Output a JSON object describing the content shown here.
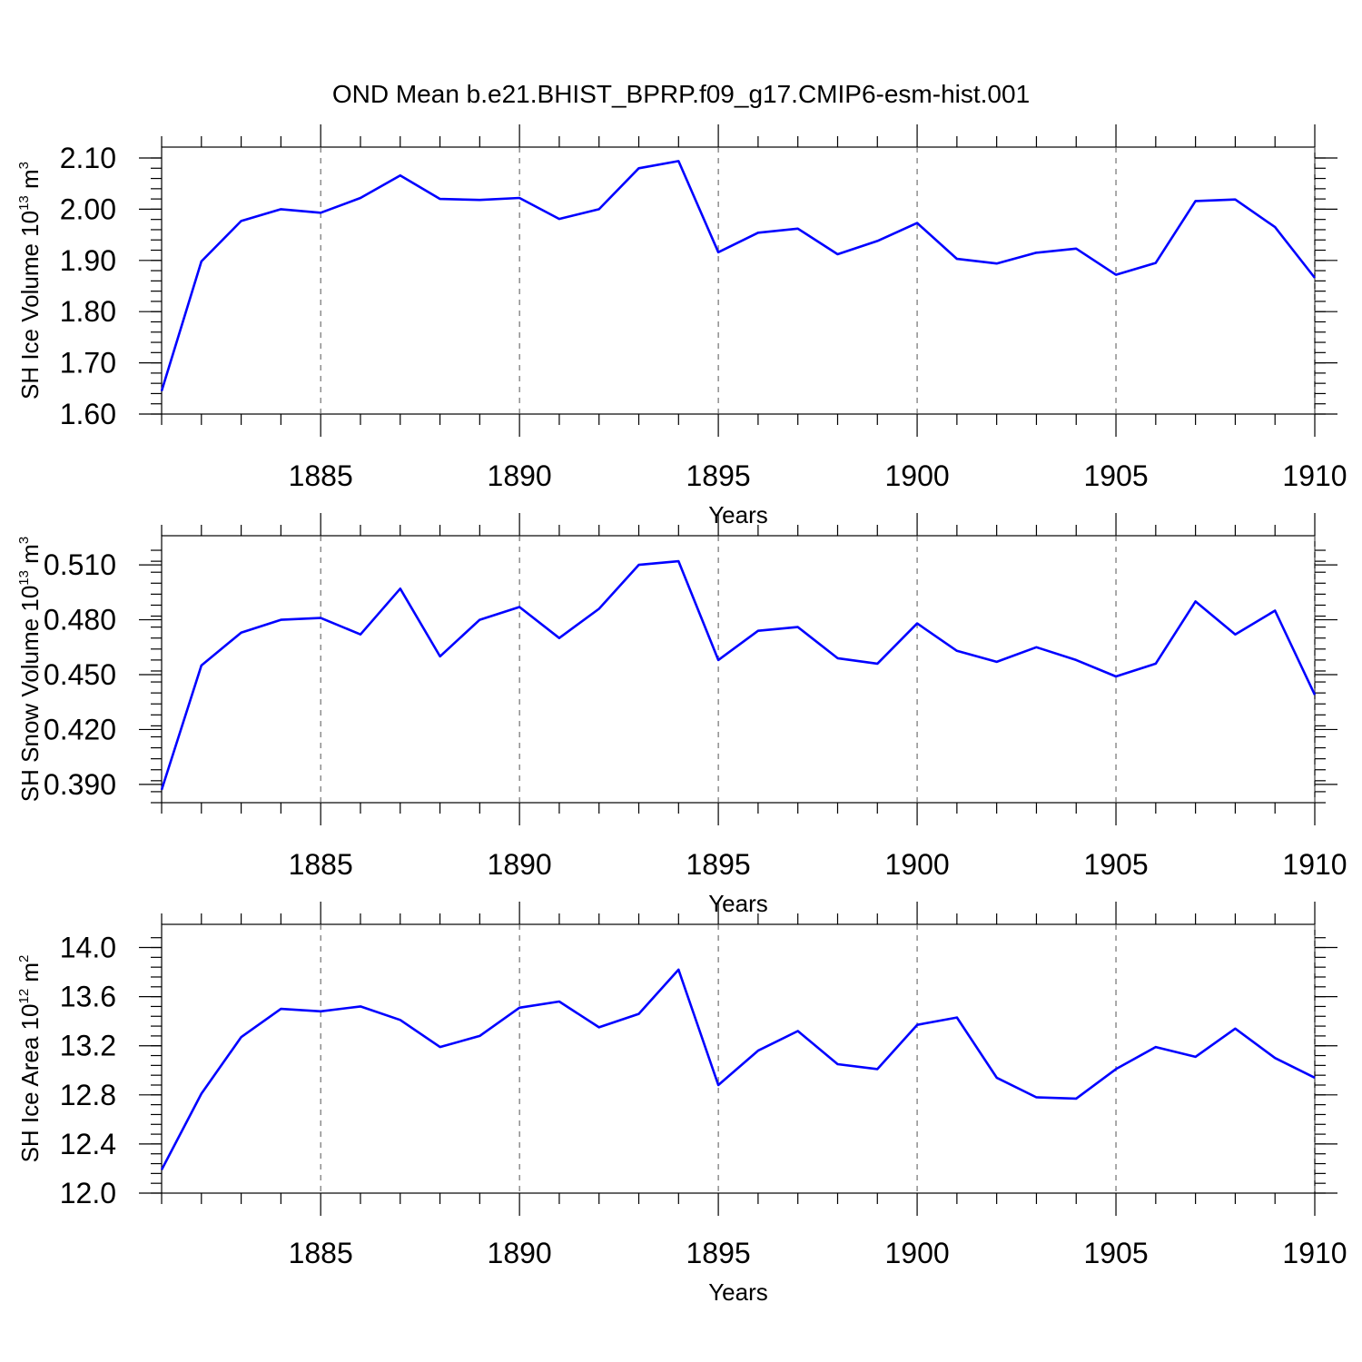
{
  "title": "OND Mean b.e21.BHIST_BPRP.f09_g17.CMIP6-esm-hist.001",
  "line_color": "#0000ff",
  "chart_data": [
    {
      "type": "line",
      "xlabel": "Years",
      "ylabel": {
        "text": "SH Ice Volume 10",
        "sup1": "13",
        "unit": " m",
        "sup2": "3"
      },
      "xlim": [
        1881,
        1910
      ],
      "ylim": [
        1.6,
        2.1
      ],
      "yticks": [
        "1.60",
        "1.70",
        "1.80",
        "1.90",
        "2.00",
        "2.10"
      ],
      "xticks": [
        "1885",
        "1890",
        "1895",
        "1900",
        "1905",
        "1910"
      ],
      "grid": "vertical dashed at major x ticks",
      "x": [
        1881,
        1882,
        1883,
        1884,
        1885,
        1886,
        1887,
        1888,
        1889,
        1890,
        1891,
        1892,
        1893,
        1894,
        1895,
        1896,
        1897,
        1898,
        1899,
        1900,
        1901,
        1902,
        1903,
        1904,
        1905,
        1906,
        1907,
        1908,
        1909,
        1910
      ],
      "values": [
        1.645,
        1.898,
        1.977,
        2.0,
        1.993,
        2.022,
        2.066,
        2.02,
        2.018,
        2.022,
        1.981,
        2.0,
        2.08,
        2.094,
        1.916,
        1.954,
        1.962,
        1.912,
        1.938,
        1.973,
        1.903,
        1.894,
        1.915,
        1.923,
        1.872,
        1.895,
        2.016,
        2.019,
        1.965,
        1.866
      ]
    },
    {
      "type": "line",
      "xlabel": "Years",
      "ylabel": {
        "text": "SH Snow Volume 10",
        "sup1": "13",
        "unit": " m",
        "sup2": "3"
      },
      "xlim": [
        1881,
        1910
      ],
      "ylim": [
        0.38,
        0.52
      ],
      "yticks": [
        "0.390",
        "0.420",
        "0.450",
        "0.480",
        "0.510"
      ],
      "xticks": [
        "1885",
        "1890",
        "1895",
        "1900",
        "1905",
        "1910"
      ],
      "grid": "vertical dashed at major x ticks",
      "x": [
        1881,
        1882,
        1883,
        1884,
        1885,
        1886,
        1887,
        1888,
        1889,
        1890,
        1891,
        1892,
        1893,
        1894,
        1895,
        1896,
        1897,
        1898,
        1899,
        1900,
        1901,
        1902,
        1903,
        1904,
        1905,
        1906,
        1907,
        1908,
        1909,
        1910
      ],
      "values": [
        0.387,
        0.455,
        0.473,
        0.48,
        0.481,
        0.472,
        0.497,
        0.46,
        0.48,
        0.487,
        0.47,
        0.486,
        0.51,
        0.512,
        0.458,
        0.474,
        0.476,
        0.459,
        0.456,
        0.478,
        0.463,
        0.457,
        0.465,
        0.458,
        0.449,
        0.456,
        0.49,
        0.472,
        0.485,
        0.439
      ]
    },
    {
      "type": "line",
      "xlabel": "Years",
      "ylabel": {
        "text": "SH Ice Area 10",
        "sup1": "12",
        "unit": " m",
        "sup2": "2"
      },
      "xlim": [
        1881,
        1910
      ],
      "ylim": [
        12.0,
        14.1
      ],
      "yticks": [
        "12.0",
        "12.4",
        "12.8",
        "13.2",
        "13.6",
        "14.0"
      ],
      "xticks": [
        "1885",
        "1890",
        "1895",
        "1900",
        "1905",
        "1910"
      ],
      "grid": "vertical dashed at major x ticks",
      "x": [
        1881,
        1882,
        1883,
        1884,
        1885,
        1886,
        1887,
        1888,
        1889,
        1890,
        1891,
        1892,
        1893,
        1894,
        1895,
        1896,
        1897,
        1898,
        1899,
        1900,
        1901,
        1902,
        1903,
        1904,
        1905,
        1906,
        1907,
        1908,
        1909,
        1910
      ],
      "values": [
        12.19,
        12.81,
        13.27,
        13.5,
        13.48,
        13.52,
        13.41,
        13.19,
        13.28,
        13.51,
        13.56,
        13.35,
        13.46,
        13.82,
        12.88,
        13.16,
        13.32,
        13.05,
        13.01,
        13.37,
        13.43,
        12.94,
        12.78,
        12.77,
        13.01,
        13.19,
        13.11,
        13.34,
        13.1,
        12.94
      ]
    }
  ]
}
